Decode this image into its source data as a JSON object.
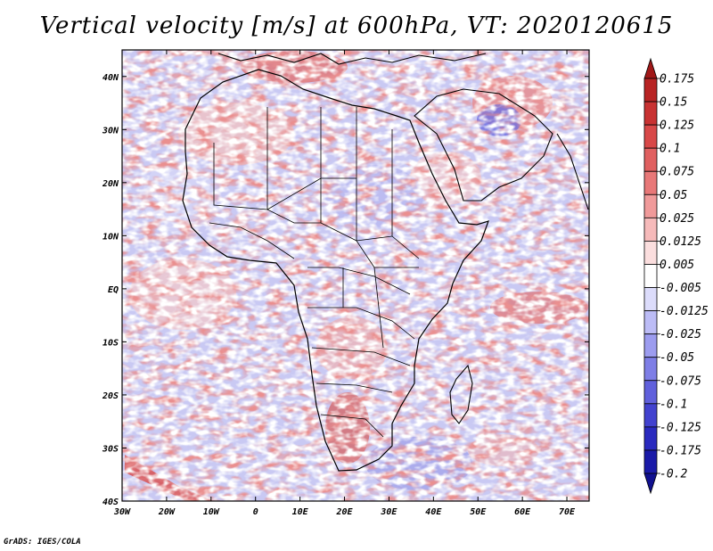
{
  "title": "Vertical velocity [m/s] at 600hPa, VT: 2020120615",
  "footer": "GrADS: IGES/COLA",
  "chart_data": {
    "type": "heatmap",
    "title": "Vertical velocity [m/s] at 600hPa, VT: 2020120615",
    "variable": "Vertical velocity",
    "unit": "m/s",
    "level": "600hPa",
    "valid_time": "2020120615",
    "xlim": [
      -30,
      75
    ],
    "ylim": [
      -40,
      45
    ],
    "x_ticks": [
      {
        "value": -30,
        "label": "30W"
      },
      {
        "value": -20,
        "label": "20W"
      },
      {
        "value": -10,
        "label": "10W"
      },
      {
        "value": 0,
        "label": "0"
      },
      {
        "value": 10,
        "label": "10E"
      },
      {
        "value": 20,
        "label": "20E"
      },
      {
        "value": 30,
        "label": "30E"
      },
      {
        "value": 40,
        "label": "40E"
      },
      {
        "value": 50,
        "label": "50E"
      },
      {
        "value": 60,
        "label": "60E"
      },
      {
        "value": 70,
        "label": "70E"
      }
    ],
    "y_ticks": [
      {
        "value": 40,
        "label": "40N"
      },
      {
        "value": 30,
        "label": "30N"
      },
      {
        "value": 20,
        "label": "20N"
      },
      {
        "value": 10,
        "label": "10N"
      },
      {
        "value": 0,
        "label": "EQ"
      },
      {
        "value": -10,
        "label": "10S"
      },
      {
        "value": -20,
        "label": "20S"
      },
      {
        "value": -30,
        "label": "30S"
      },
      {
        "value": -40,
        "label": "40S"
      }
    ],
    "colorbar": {
      "levels": [
        "0.175",
        "0.15",
        "0.125",
        "0.1",
        "0.075",
        "0.05",
        "0.025",
        "0.0125",
        "0.005",
        "-0.005",
        "-0.0125",
        "-0.025",
        "-0.05",
        "-0.075",
        "-0.1",
        "-0.125",
        "-0.175",
        "-0.2"
      ],
      "colors": [
        "#a01818",
        "#b82424",
        "#c83232",
        "#d84848",
        "#e06060",
        "#e87878",
        "#f09a9a",
        "#f6baba",
        "#fbdede",
        "#ffffff",
        "#dcdcfb",
        "#bcbcf6",
        "#9c9cef",
        "#7e7ee6",
        "#6060dc",
        "#4242cf",
        "#2a2abf",
        "#1a1aa8",
        "#10108f"
      ]
    }
  }
}
